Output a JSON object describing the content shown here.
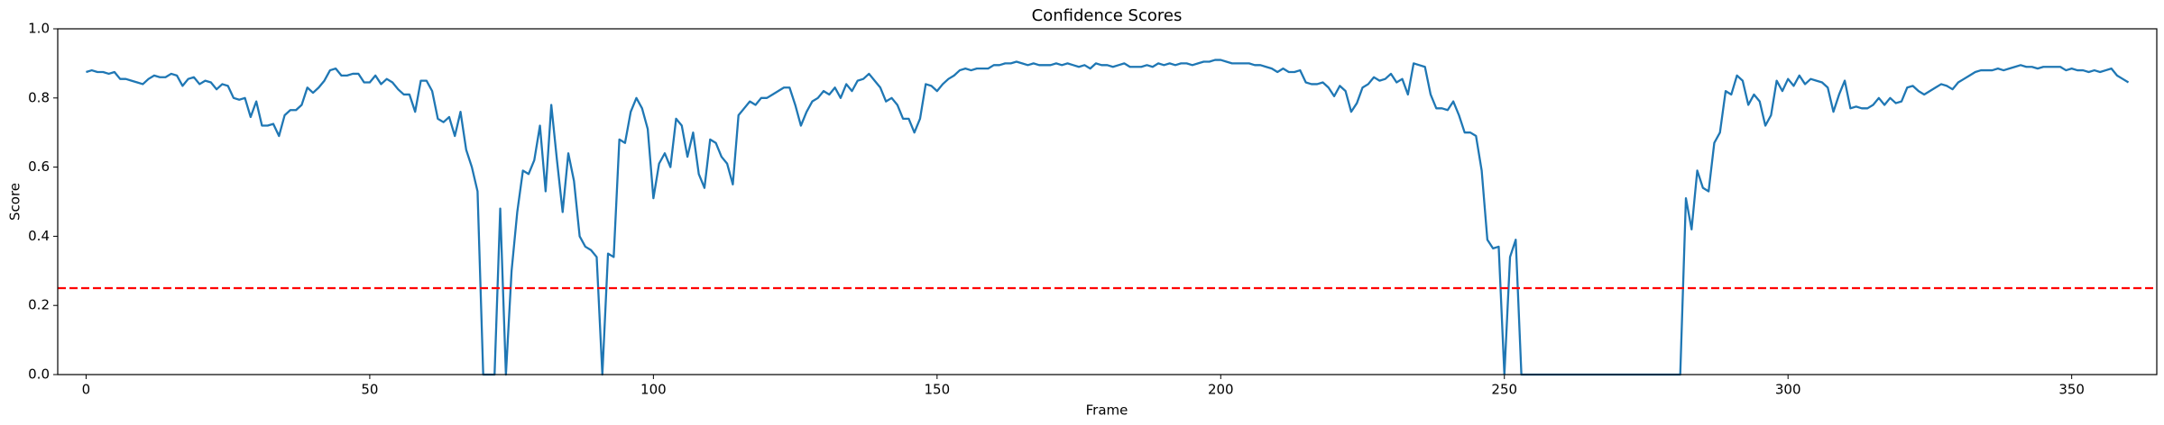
{
  "chart_data": {
    "type": "line",
    "title": "Confidence Scores",
    "x_label": "Frame",
    "y_label": "Score",
    "x": [
      0,
      1,
      2,
      3,
      4,
      5,
      6,
      7,
      8,
      9,
      10,
      11,
      12,
      13,
      14,
      15,
      16,
      17,
      18,
      19,
      20,
      21,
      22,
      23,
      24,
      25,
      26,
      27,
      28,
      29,
      30,
      31,
      32,
      33,
      34,
      35,
      36,
      37,
      38,
      39,
      40,
      41,
      42,
      43,
      44,
      45,
      46,
      47,
      48,
      49,
      50,
      51,
      52,
      53,
      54,
      55,
      56,
      57,
      58,
      59,
      60,
      61,
      62,
      63,
      64,
      65,
      66,
      67,
      68,
      69,
      70,
      71,
      72,
      73,
      74,
      75,
      76,
      77,
      78,
      79,
      80,
      81,
      82,
      83,
      84,
      85,
      86,
      87,
      88,
      89,
      90,
      91,
      92,
      93,
      94,
      95,
      96,
      97,
      98,
      99,
      100,
      101,
      102,
      103,
      104,
      105,
      106,
      107,
      108,
      109,
      110,
      111,
      112,
      113,
      114,
      115,
      116,
      117,
      118,
      119,
      120,
      121,
      122,
      123,
      124,
      125,
      126,
      127,
      128,
      129,
      130,
      131,
      132,
      133,
      134,
      135,
      136,
      137,
      138,
      139,
      140,
      141,
      142,
      143,
      144,
      145,
      146,
      147,
      148,
      149,
      150,
      151,
      152,
      153,
      154,
      155,
      156,
      157,
      158,
      159,
      160,
      161,
      162,
      163,
      164,
      165,
      166,
      167,
      168,
      169,
      170,
      171,
      172,
      173,
      174,
      175,
      176,
      177,
      178,
      179,
      180,
      181,
      182,
      183,
      184,
      185,
      186,
      187,
      188,
      189,
      190,
      191,
      192,
      193,
      194,
      195,
      196,
      197,
      198,
      199,
      200,
      201,
      202,
      203,
      204,
      205,
      206,
      207,
      208,
      209,
      210,
      211,
      212,
      213,
      214,
      215,
      216,
      217,
      218,
      219,
      220,
      221,
      222,
      223,
      224,
      225,
      226,
      227,
      228,
      229,
      230,
      231,
      232,
      233,
      234,
      235,
      236,
      237,
      238,
      239,
      240,
      241,
      242,
      243,
      244,
      245,
      246,
      247,
      248,
      249,
      250,
      251,
      252,
      253,
      254,
      255,
      256,
      257,
      258,
      259,
      260,
      261,
      262,
      263,
      264,
      265,
      266,
      267,
      268,
      269,
      270,
      271,
      272,
      273,
      274,
      275,
      276,
      277,
      278,
      279,
      280,
      281,
      282,
      283,
      284,
      285,
      286,
      287,
      288,
      289,
      290,
      291,
      292,
      293,
      294,
      295,
      296,
      297,
      298,
      299,
      300,
      301,
      302,
      303,
      304,
      305,
      306,
      307,
      308,
      309,
      310,
      311,
      312,
      313,
      314,
      315,
      316,
      317,
      318,
      319,
      320,
      321,
      322,
      323,
      324,
      325,
      326,
      327,
      328,
      329,
      330,
      331,
      332,
      333,
      334,
      335,
      336,
      337,
      338,
      339,
      340,
      341,
      342,
      343,
      344,
      345,
      346,
      347,
      348,
      349,
      350,
      351,
      352,
      353,
      354,
      355,
      356,
      357,
      358,
      359,
      360
    ],
    "series": [
      {
        "color": "#1f77b4",
        "values": [
          0.875,
          0.88,
          0.875,
          0.875,
          0.87,
          0.875,
          0.855,
          0.855,
          0.85,
          0.845,
          0.84,
          0.855,
          0.865,
          0.86,
          0.86,
          0.87,
          0.865,
          0.835,
          0.855,
          0.86,
          0.84,
          0.85,
          0.845,
          0.825,
          0.84,
          0.835,
          0.8,
          0.795,
          0.8,
          0.745,
          0.79,
          0.72,
          0.72,
          0.725,
          0.69,
          0.75,
          0.765,
          0.765,
          0.78,
          0.83,
          0.815,
          0.83,
          0.85,
          0.88,
          0.885,
          0.865,
          0.865,
          0.87,
          0.87,
          0.845,
          0.845,
          0.865,
          0.84,
          0.855,
          0.845,
          0.825,
          0.81,
          0.81,
          0.76,
          0.85,
          0.85,
          0.82,
          0.74,
          0.73,
          0.745,
          0.69,
          0.76,
          0.65,
          0.6,
          0.53,
          0,
          0,
          0,
          0.48,
          0,
          0.3,
          0.47,
          0.59,
          0.58,
          0.62,
          0.72,
          0.53,
          0.78,
          0.62,
          0.47,
          0.64,
          0.56,
          0.4,
          0.37,
          0.36,
          0.34,
          0,
          0.35,
          0.34,
          0.68,
          0.67,
          0.76,
          0.8,
          0.77,
          0.71,
          0.51,
          0.61,
          0.64,
          0.6,
          0.74,
          0.72,
          0.63,
          0.7,
          0.58,
          0.54,
          0.68,
          0.67,
          0.63,
          0.61,
          0.55,
          0.75,
          0.77,
          0.79,
          0.78,
          0.8,
          0.8,
          0.81,
          0.82,
          0.83,
          0.83,
          0.78,
          0.72,
          0.76,
          0.79,
          0.8,
          0.82,
          0.81,
          0.83,
          0.8,
          0.84,
          0.82,
          0.85,
          0.855,
          0.87,
          0.85,
          0.83,
          0.79,
          0.8,
          0.78,
          0.74,
          0.74,
          0.7,
          0.74,
          0.84,
          0.835,
          0.82,
          0.84,
          0.855,
          0.865,
          0.88,
          0.885,
          0.88,
          0.885,
          0.885,
          0.885,
          0.895,
          0.895,
          0.9,
          0.9,
          0.905,
          0.9,
          0.895,
          0.9,
          0.895,
          0.895,
          0.895,
          0.9,
          0.895,
          0.9,
          0.895,
          0.89,
          0.895,
          0.885,
          0.9,
          0.895,
          0.895,
          0.89,
          0.895,
          0.9,
          0.89,
          0.89,
          0.89,
          0.895,
          0.89,
          0.9,
          0.895,
          0.9,
          0.895,
          0.9,
          0.9,
          0.895,
          0.9,
          0.905,
          0.905,
          0.91,
          0.91,
          0.905,
          0.9,
          0.9,
          0.9,
          0.9,
          0.895,
          0.895,
          0.89,
          0.885,
          0.875,
          0.885,
          0.875,
          0.875,
          0.88,
          0.845,
          0.84,
          0.84,
          0.845,
          0.83,
          0.805,
          0.835,
          0.82,
          0.76,
          0.785,
          0.83,
          0.84,
          0.86,
          0.85,
          0.855,
          0.87,
          0.845,
          0.855,
          0.81,
          0.9,
          0.895,
          0.89,
          0.81,
          0.77,
          0.77,
          0.765,
          0.79,
          0.75,
          0.7,
          0.7,
          0.69,
          0.59,
          0.39,
          0.365,
          0.37,
          0,
          0.34,
          0.39,
          0,
          0,
          0,
          0,
          0,
          0,
          0,
          0,
          0,
          0,
          0,
          0,
          0,
          0,
          0,
          0,
          0,
          0,
          0,
          0,
          0,
          0,
          0,
          0,
          0,
          0,
          0,
          0,
          0,
          0.51,
          0.42,
          0.59,
          0.54,
          0.53,
          0.67,
          0.7,
          0.82,
          0.81,
          0.865,
          0.85,
          0.78,
          0.81,
          0.79,
          0.72,
          0.75,
          0.85,
          0.82,
          0.855,
          0.835,
          0.865,
          0.84,
          0.855,
          0.85,
          0.845,
          0.83,
          0.76,
          0.81,
          0.85,
          0.77,
          0.775,
          0.77,
          0.77,
          0.78,
          0.8,
          0.78,
          0.8,
          0.785,
          0.79,
          0.83,
          0.835,
          0.82,
          0.81,
          0.82,
          0.83,
          0.84,
          0.835,
          0.825,
          0.845,
          0.855,
          0.865,
          0.875,
          0.88,
          0.88,
          0.88,
          0.885,
          0.88,
          0.885,
          0.89,
          0.895,
          0.89,
          0.89,
          0.885,
          0.89,
          0.89,
          0.89,
          0.89,
          0.88,
          0.885,
          0.88,
          0.88,
          0.875,
          0.88,
          0.875,
          0.88,
          0.885,
          0.865,
          0.855,
          0.845
        ]
      }
    ],
    "hline": {
      "value": 0.25,
      "color": "#ff0000",
      "dashed": true
    },
    "xlim": [
      -5,
      365
    ],
    "xticks": [
      0,
      50,
      100,
      150,
      200,
      250,
      300,
      350
    ],
    "ylim": [
      0,
      1
    ],
    "yticks": [
      {
        "value": 0,
        "label": "0.0"
      },
      {
        "value": 0.2,
        "label": "0.2"
      },
      {
        "value": 0.4,
        "label": "0.4"
      },
      {
        "value": 0.6,
        "label": "0.6"
      },
      {
        "value": 0.8,
        "label": "0.8"
      },
      {
        "value": 1,
        "label": "1.0"
      }
    ],
    "grid": false
  }
}
